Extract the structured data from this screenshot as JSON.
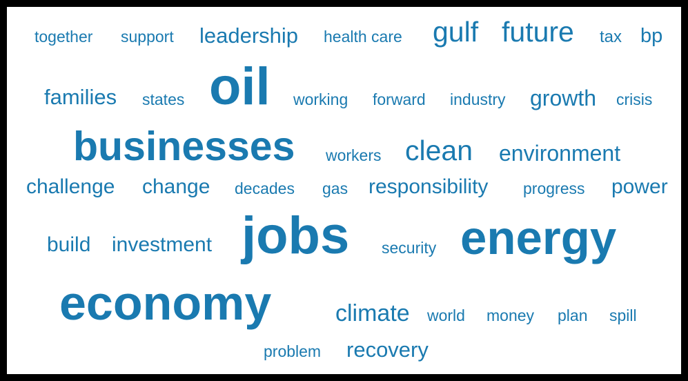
{
  "color": "#1a7ab0",
  "words": {
    "together": "together",
    "support": "support",
    "leadership": "leadership",
    "health_care": "health care",
    "gulf": "gulf",
    "future": "future",
    "tax": "tax",
    "bp": "bp",
    "families": "families",
    "states": "states",
    "oil": "oil",
    "working": "working",
    "forward": "forward",
    "industry": "industry",
    "growth": "growth",
    "crisis": "crisis",
    "businesses": "businesses",
    "workers": "workers",
    "clean": "clean",
    "environment": "environment",
    "challenge": "challenge",
    "change": "change",
    "decades": "decades",
    "gas": "gas",
    "responsibility": "responsibility",
    "progress": "progress",
    "power": "power",
    "build": "build",
    "investment": "investment",
    "jobs": "jobs",
    "security": "security",
    "energy": "energy",
    "economy": "economy",
    "climate": "climate",
    "world": "world",
    "money": "money",
    "plan": "plan",
    "spill": "spill",
    "problem": "problem",
    "recovery": "recovery"
  }
}
